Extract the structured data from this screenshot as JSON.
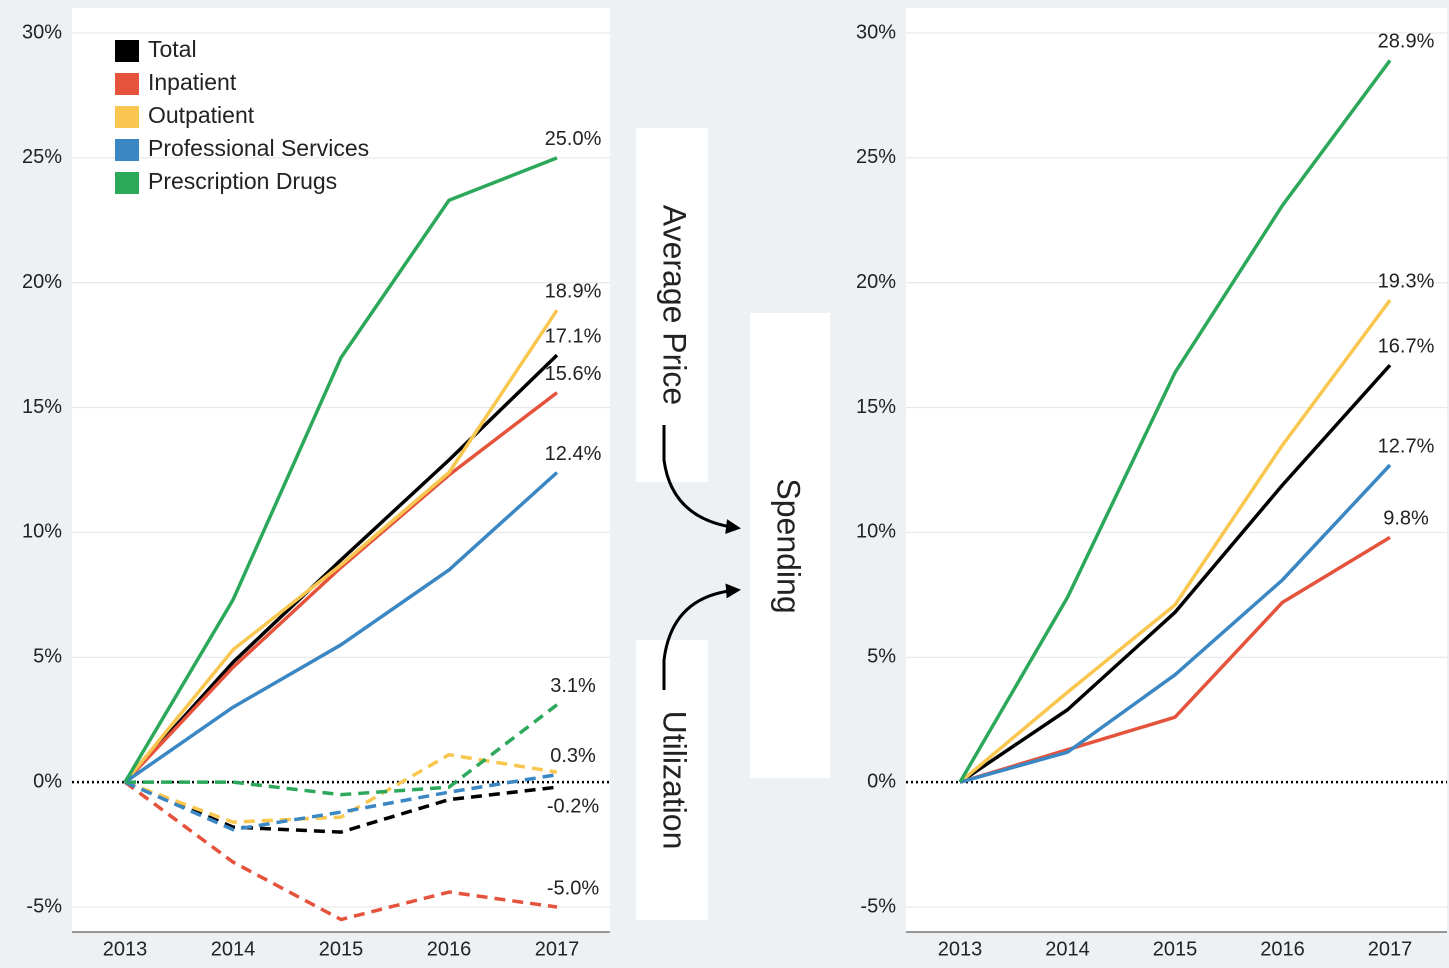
{
  "flow": {
    "left_label": "Average Price",
    "lower_label": "Utilization",
    "right_label": "Spending"
  },
  "chart_data": [
    {
      "type": "line",
      "categories": [
        "2013",
        "2014",
        "2015",
        "2016",
        "2017"
      ],
      "ylim": [
        -6,
        31
      ],
      "yticks": [
        {
          "value": 30,
          "label": "30%"
        },
        {
          "value": 25,
          "label": "25%"
        },
        {
          "value": 20,
          "label": "20%"
        },
        {
          "value": 15,
          "label": "15%"
        },
        {
          "value": 10,
          "label": "10%"
        },
        {
          "value": 5,
          "label": "5%"
        },
        {
          "value": 0,
          "label": "0%"
        },
        {
          "value": -5,
          "label": "-5%"
        }
      ],
      "grid": true,
      "legend": "upper-left",
      "series": [
        {
          "name": "Total",
          "color": "#000000",
          "values": [
            0,
            4.8,
            8.9,
            12.9,
            17.1
          ],
          "value_labels": [
            null,
            null,
            null,
            null,
            "17.1%"
          ]
        },
        {
          "name": "Inpatient",
          "color": "#e5533c",
          "values": [
            0,
            4.6,
            8.6,
            12.3,
            15.6
          ],
          "value_labels": [
            null,
            null,
            null,
            null,
            "15.6%"
          ]
        },
        {
          "name": "Outpatient",
          "color": "#f9c74f",
          "values": [
            0,
            5.3,
            8.7,
            12.4,
            18.9
          ],
          "value_labels": [
            null,
            null,
            null,
            null,
            "18.9%"
          ]
        },
        {
          "name": "Professional Services",
          "color": "#3a87c4",
          "values": [
            0,
            3.0,
            5.5,
            8.5,
            12.4
          ],
          "value_labels": [
            null,
            null,
            null,
            null,
            "12.4%"
          ]
        },
        {
          "name": "Prescription Drugs",
          "color": "#2ca85a",
          "values": [
            0,
            7.3,
            17.0,
            23.3,
            25.0
          ],
          "value_labels": [
            null,
            null,
            null,
            null,
            "25.0%"
          ]
        }
      ],
      "dashed_series": [
        {
          "color": "#000000",
          "values": [
            0,
            -1.8,
            -2.0,
            -0.7,
            -0.2
          ],
          "value_labels": [
            null,
            null,
            null,
            null,
            "-0.2%"
          ]
        },
        {
          "color": "#e5533c",
          "values": [
            0,
            -3.2,
            -5.5,
            -4.4,
            -5.0
          ],
          "value_labels": [
            null,
            null,
            null,
            null,
            "-5.0%"
          ]
        },
        {
          "color": "#f9c74f",
          "values": [
            0,
            -1.6,
            -1.4,
            1.1,
            0.4
          ],
          "value_labels": [
            null,
            null,
            null,
            null,
            null
          ]
        },
        {
          "color": "#3a87c4",
          "values": [
            0,
            -1.9,
            -1.2,
            -0.4,
            0.3
          ],
          "value_labels": [
            null,
            null,
            null,
            null,
            "0.3%"
          ]
        },
        {
          "color": "#2ca85a",
          "values": [
            0,
            0.0,
            -0.5,
            -0.2,
            3.1
          ],
          "value_labels": [
            null,
            null,
            null,
            null,
            "3.1%"
          ]
        }
      ]
    },
    {
      "type": "line",
      "categories": [
        "2013",
        "2014",
        "2015",
        "2016",
        "2017"
      ],
      "ylim": [
        -6,
        31
      ],
      "yticks": [
        {
          "value": 30,
          "label": "30%"
        },
        {
          "value": 25,
          "label": "25%"
        },
        {
          "value": 20,
          "label": "20%"
        },
        {
          "value": 15,
          "label": "15%"
        },
        {
          "value": 10,
          "label": "10%"
        },
        {
          "value": 5,
          "label": "5%"
        },
        {
          "value": 0,
          "label": "0%"
        },
        {
          "value": -5,
          "label": "-5%"
        }
      ],
      "grid": true,
      "series": [
        {
          "color": "#000000",
          "values": [
            0,
            2.9,
            6.8,
            11.9,
            16.7
          ],
          "value_labels": [
            null,
            null,
            null,
            null,
            "16.7%"
          ]
        },
        {
          "color": "#e5533c",
          "values": [
            0,
            1.3,
            2.6,
            7.2,
            9.8
          ],
          "value_labels": [
            null,
            null,
            null,
            null,
            "9.8%"
          ]
        },
        {
          "color": "#f9c74f",
          "values": [
            0,
            3.6,
            7.1,
            13.5,
            19.3
          ],
          "value_labels": [
            null,
            null,
            null,
            null,
            "19.3%"
          ]
        },
        {
          "color": "#3a87c4",
          "values": [
            0,
            1.2,
            4.3,
            8.1,
            12.7
          ],
          "value_labels": [
            null,
            null,
            null,
            null,
            "12.7%"
          ]
        },
        {
          "color": "#2ca85a",
          "values": [
            0,
            7.4,
            16.4,
            23.1,
            28.9
          ],
          "value_labels": [
            null,
            null,
            null,
            null,
            "28.9%"
          ]
        }
      ]
    }
  ]
}
